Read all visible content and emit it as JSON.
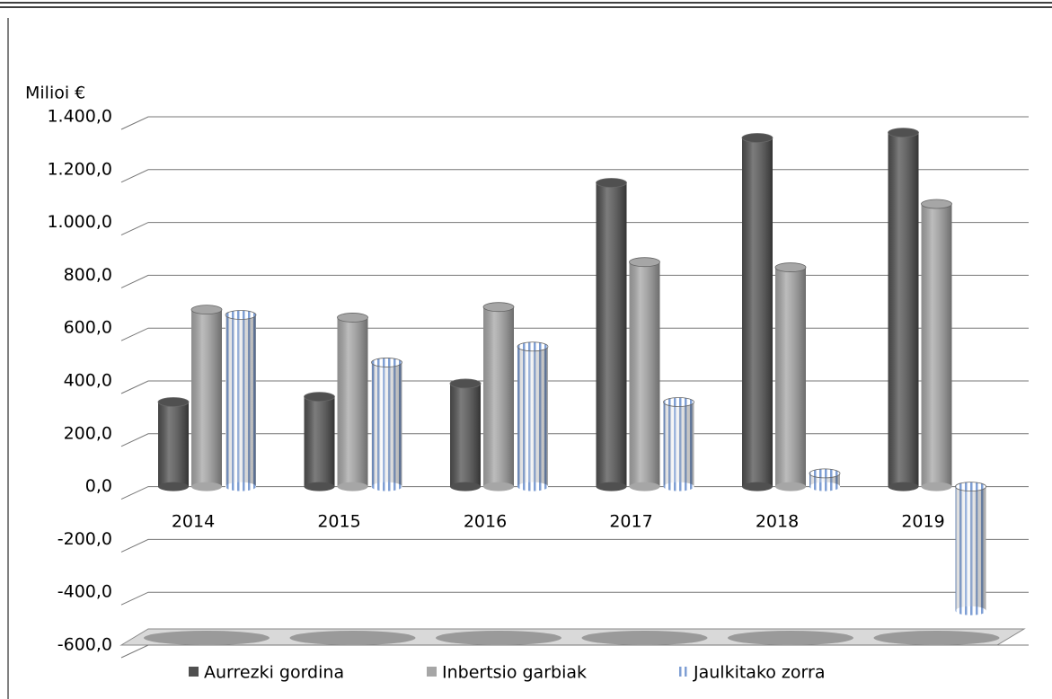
{
  "chart_data": {
    "type": "bar3d",
    "y_axis_label": "Milioi €",
    "categories": [
      "2014",
      "2015",
      "2016",
      "2017",
      "2018",
      "2019"
    ],
    "series": [
      {
        "name": "Aurrezki gordina",
        "color": "#505050",
        "values": [
          320,
          340,
          390,
          1150,
          1320,
          1340
        ]
      },
      {
        "name": "Inbertsio garbiak",
        "color": "#a6a6a6",
        "values": [
          670,
          640,
          680,
          850,
          830,
          1070
        ]
      },
      {
        "name": "Jaulkitako zorra",
        "color": "#8ea9db",
        "values": [
          650,
          470,
          530,
          320,
          50,
          -470
        ]
      }
    ],
    "ylim": [
      -600,
      1400
    ],
    "yticks": [
      {
        "value": -600,
        "label": "-600,0"
      },
      {
        "value": -400,
        "label": "-400,0"
      },
      {
        "value": -200,
        "label": "-200,0"
      },
      {
        "value": 0,
        "label": "0,0"
      },
      {
        "value": 200,
        "label": "200,0"
      },
      {
        "value": 400,
        "label": "400,0"
      },
      {
        "value": 600,
        "label": "600,0"
      },
      {
        "value": 800,
        "label": "800,0"
      },
      {
        "value": 1000,
        "label": "1.000,0"
      },
      {
        "value": 1200,
        "label": "1.200,0"
      },
      {
        "value": 1400,
        "label": "1.400,0"
      }
    ],
    "grid": true,
    "legend": "bottom"
  }
}
